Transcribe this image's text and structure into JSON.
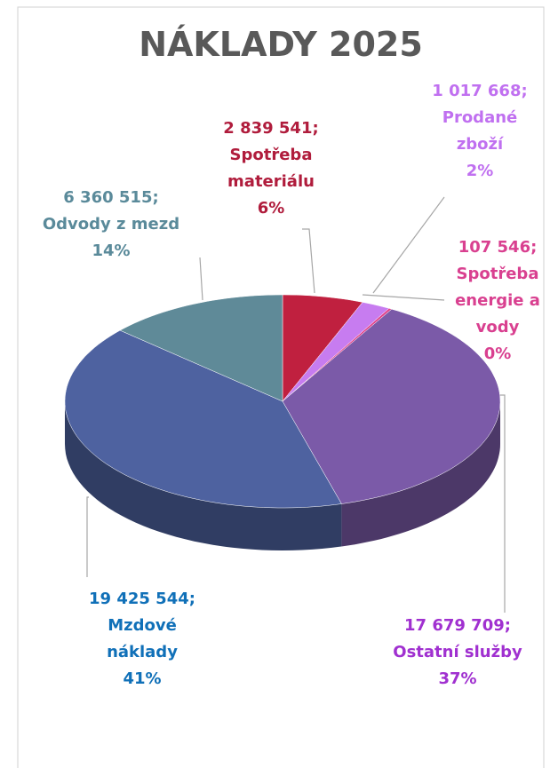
{
  "chart_data": {
    "type": "pie",
    "title": "NÁKLADY 2025",
    "categories": [
      "Spotřeba materiálu",
      "Prodané zboží",
      "Spotřeba energie a vody",
      "Ostatní služby",
      "Mzdové náklady",
      "Odvody z mezd"
    ],
    "values": [
      2839541,
      1017668,
      107546,
      17679709,
      19425544,
      6360515
    ],
    "value_labels": [
      "2 839 541",
      "1 017 668",
      "107 546",
      "17 679 709",
      "19 425 544",
      "6 360 515"
    ],
    "separator": ";",
    "percents": [
      6,
      2,
      0,
      37,
      41,
      14
    ],
    "percent_labels": [
      "6%",
      "2%",
      "0%",
      "37%",
      "41%",
      "14%"
    ],
    "colors": [
      "#c0203f",
      "#c77cf0",
      "#e0408a",
      "#7b5aa8",
      "#4e62a0",
      "#5f8a98"
    ],
    "label_colors": [
      "#b01c3c",
      "#c070f0",
      "#d94090",
      "#a030d0",
      "#1070b8",
      "#5a8a9a"
    ]
  }
}
